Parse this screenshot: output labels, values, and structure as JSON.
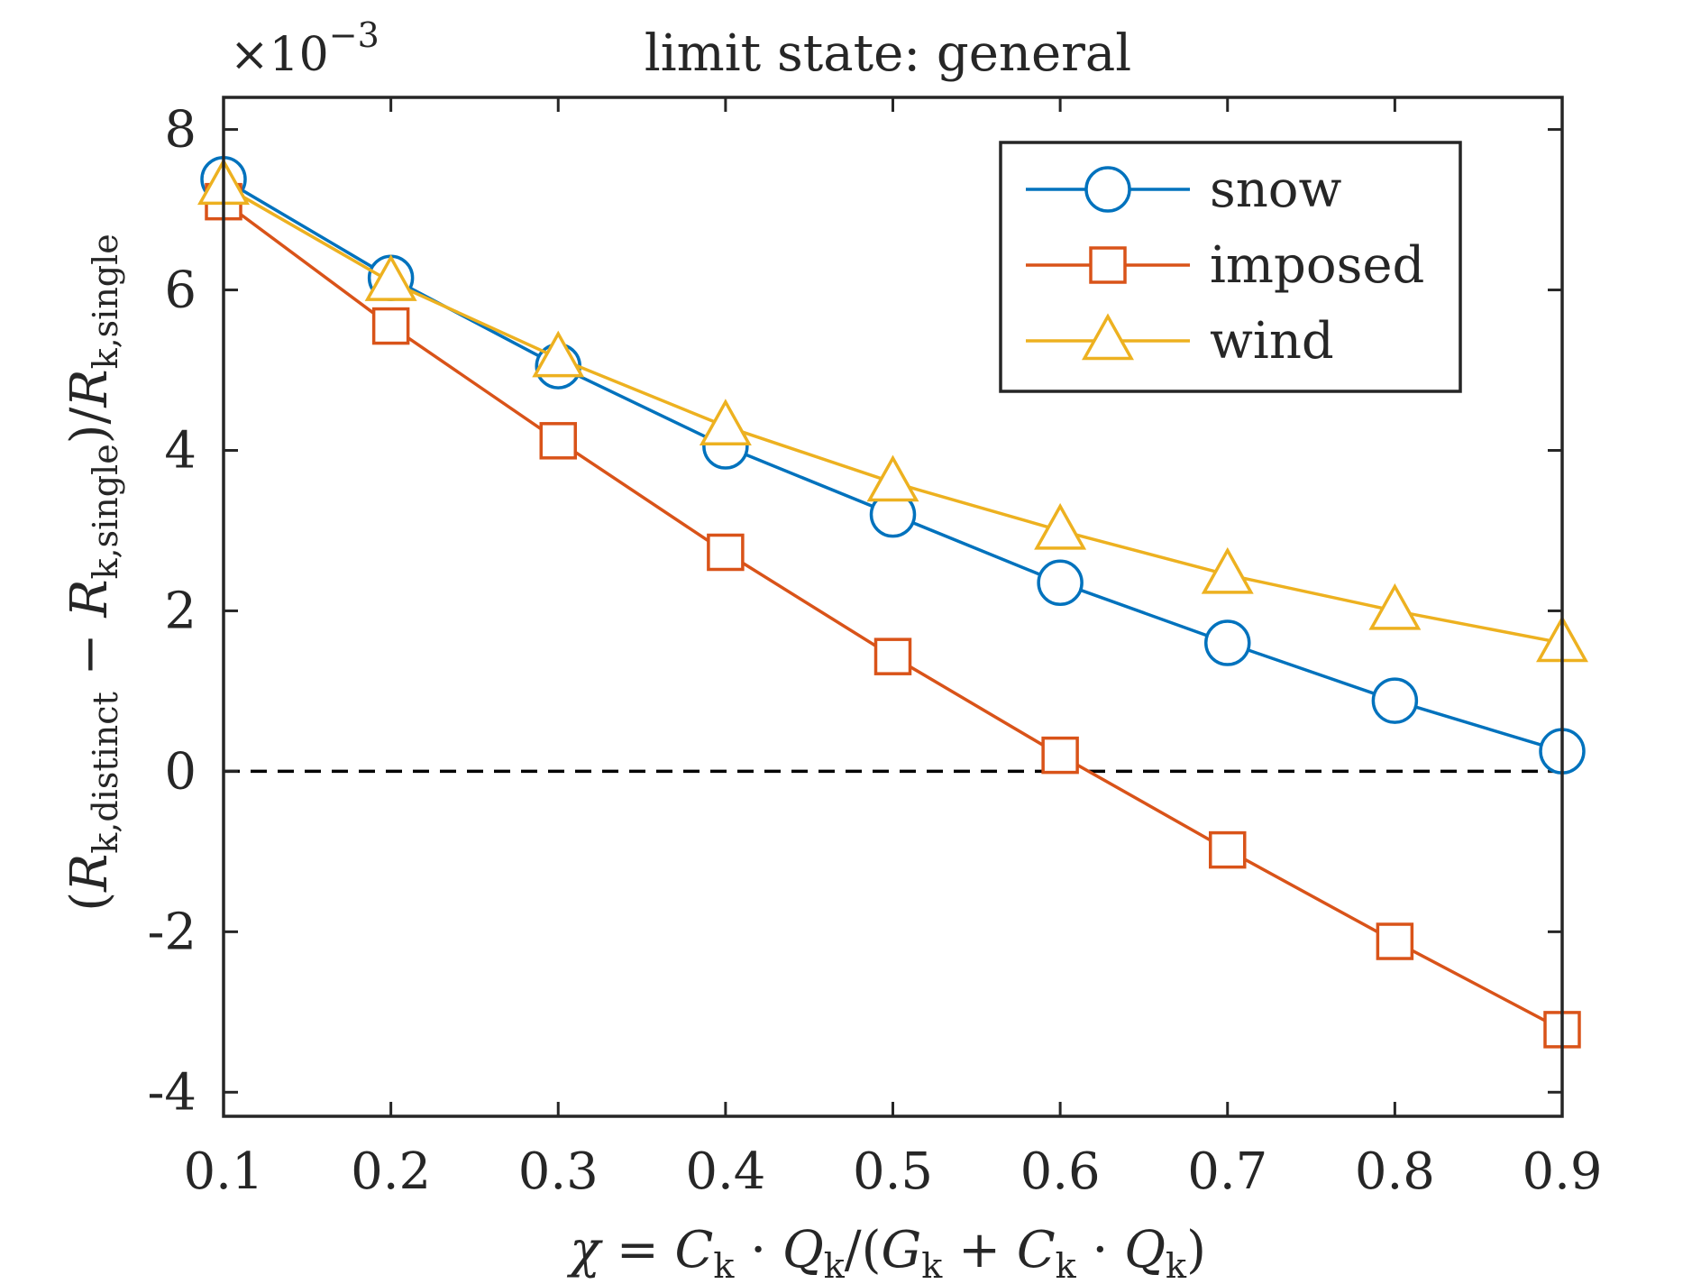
{
  "chart_data": {
    "type": "line",
    "title": "limit state: general",
    "exponent_label": "×10",
    "exponent_power": "−3",
    "xlabel": {
      "prefix": "χ = ",
      "C": "C",
      "k": "k",
      "dot": " · ",
      "Q": "Q",
      "slash_open": "/(",
      "G": "G",
      "plus": " + ",
      "close": ")"
    },
    "ylabel": {
      "open": "(",
      "R": "R",
      "sub_distinct": "k,distinct",
      "minus": " − ",
      "sub_single": "k,single",
      "close_div": ")/"
    },
    "xlim": [
      0.1,
      0.9
    ],
    "ylim": [
      -4.3,
      8.4
    ],
    "x_ticks": [
      0.1,
      0.2,
      0.3,
      0.4,
      0.5,
      0.6,
      0.7,
      0.8,
      0.9
    ],
    "x_tick_labels": [
      "0.1",
      "0.2",
      "0.3",
      "0.4",
      "0.5",
      "0.6",
      "0.7",
      "0.8",
      "0.9"
    ],
    "y_ticks": [
      -4,
      -2,
      0,
      2,
      4,
      6,
      8
    ],
    "y_tick_labels": [
      "-4",
      "-2",
      "0",
      "2",
      "4",
      "6",
      "8"
    ],
    "x": [
      0.1,
      0.2,
      0.3,
      0.4,
      0.5,
      0.6,
      0.7,
      0.8,
      0.9
    ],
    "series": [
      {
        "name": "snow",
        "marker": "circle",
        "color": "#0072BD",
        "values": [
          7.38,
          6.15,
          5.05,
          4.05,
          3.2,
          2.35,
          1.6,
          0.88,
          0.25
        ]
      },
      {
        "name": "imposed",
        "marker": "square",
        "color": "#D95319",
        "values": [
          7.1,
          5.55,
          4.12,
          2.73,
          1.43,
          0.2,
          -0.98,
          -2.12,
          -3.22
        ]
      },
      {
        "name": "wind",
        "marker": "triangle",
        "color": "#EDB120",
        "values": [
          7.3,
          6.1,
          5.15,
          4.3,
          3.6,
          3.0,
          2.45,
          2.0,
          1.6
        ]
      }
    ],
    "reference_line": {
      "y": 0,
      "style": "dashed",
      "color": "#000000"
    },
    "legend_position": "top-right",
    "grid": false
  }
}
